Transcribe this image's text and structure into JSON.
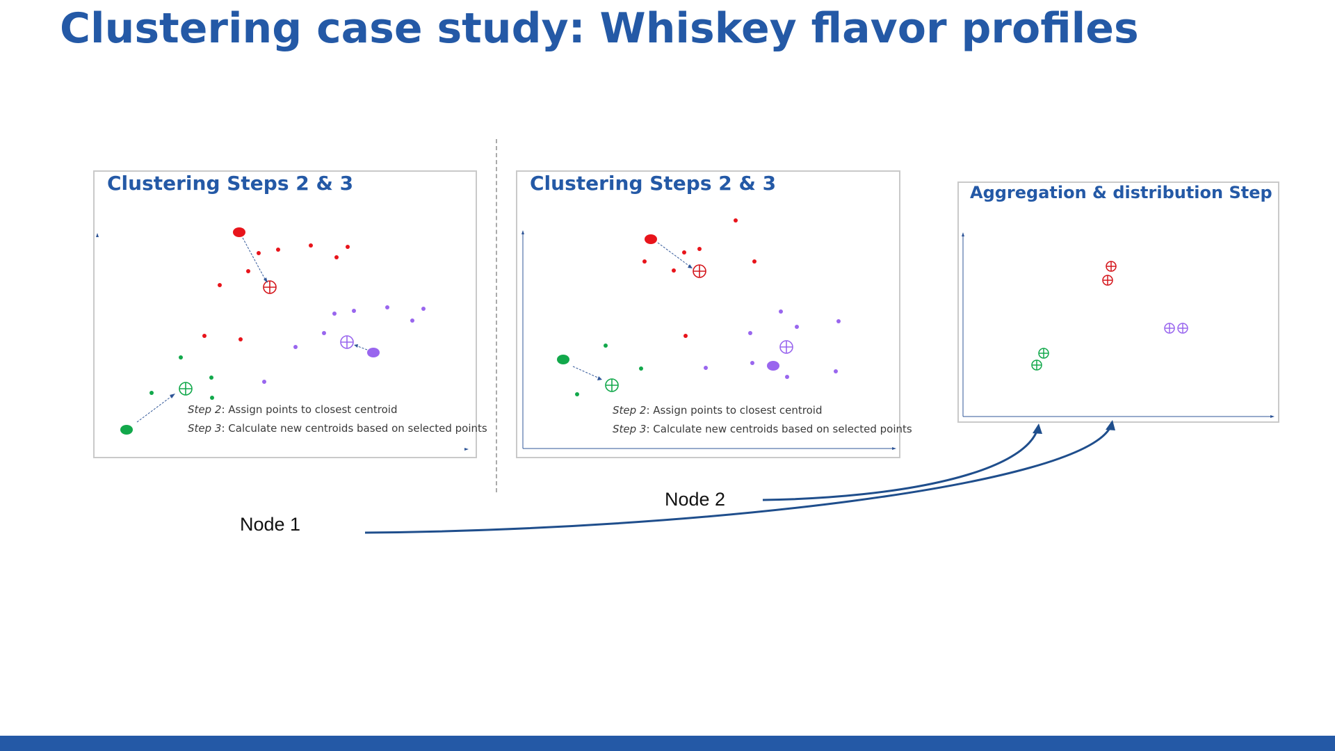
{
  "slide": {
    "title": "Clustering case study: Whiskey flavor profiles",
    "accent_color": "#2459a6"
  },
  "panels": [
    {
      "title": "Clustering Steps 2 & 3",
      "step2_label": "Step 2",
      "step2_text": ": Assign points to closest centroid",
      "step3_label": "Step 3",
      "step3_text": ": Calculate new centroids based on selected points"
    },
    {
      "title": "Clustering Steps 2 & 3",
      "step2_label": "Step 2",
      "step2_text": ": Assign points to closest centroid",
      "step3_label": "Step 3",
      "step3_text": ": Calculate new centroids based on selected points"
    },
    {
      "title": "Aggregation & distribution Step"
    }
  ],
  "nodes": {
    "node1": "Node 1",
    "node2": "Node 2"
  },
  "colors": {
    "red": "#e8141b",
    "green": "#12a84b",
    "purple": "#9966ee",
    "axis": "#2f5597",
    "arrow": "#1f4e8c"
  }
}
